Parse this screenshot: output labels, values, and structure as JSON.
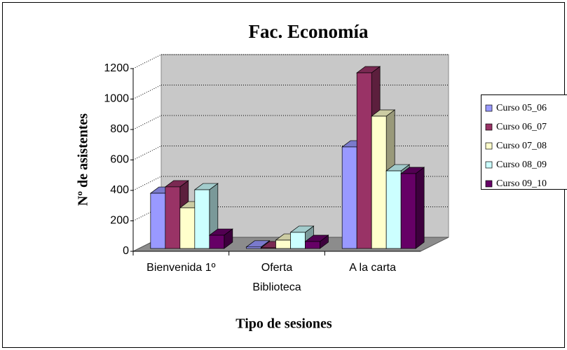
{
  "chart_data": {
    "type": "bar3d",
    "title": "Fac.  Economía",
    "y_label": "Nº de asistentes",
    "x_label": "Tipo de sesiones",
    "categories": [
      "Bienvenida 1º",
      "Oferta Biblioteca",
      "A la carta"
    ],
    "series": [
      {
        "name": "Curso 05_06",
        "color": "#9999ff",
        "values": [
          363,
          10,
          667
        ]
      },
      {
        "name": "Curso 06_07",
        "color": "#993366",
        "values": [
          405,
          5,
          1154
        ]
      },
      {
        "name": "Curso 07_08",
        "color": "#ffffcc",
        "values": [
          267,
          55,
          869
        ]
      },
      {
        "name": "Curso 08_09",
        "color": "#ccffff",
        "values": [
          386,
          106,
          510
        ]
      },
      {
        "name": "Curso 09_10",
        "color": "#660066",
        "values": [
          87,
          46,
          492
        ]
      }
    ],
    "ylim": [
      0,
      1200
    ],
    "yticks": [
      0,
      200,
      400,
      600,
      800,
      1000,
      1200
    ],
    "grid": true,
    "legend": "right"
  }
}
